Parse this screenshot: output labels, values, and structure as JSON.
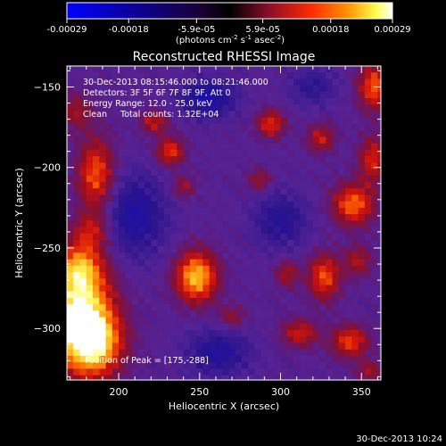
{
  "chart_data": {
    "type": "heatmap",
    "title": "Reconstructed RHESSI Image",
    "xlabel": "Heliocentric X (arcsec)",
    "ylabel": "Heliocentric Y (arcsec)",
    "xlim": [
      168,
      362
    ],
    "ylim": [
      -332,
      -137
    ],
    "x_ticks": [
      200,
      250,
      300,
      350
    ],
    "y_ticks": [
      -150,
      -200,
      -250,
      -300
    ],
    "colorbar": {
      "ticks": [
        "-0.00029",
        "-0.00018",
        "-5.9e-05",
        "5.9e-05",
        "0.00018",
        "0.00029"
      ],
      "tick_values": [
        -0.00029,
        -0.00018,
        -5.9e-05,
        5.9e-05,
        0.00018,
        0.00029
      ],
      "range": [
        -0.00029,
        0.00029
      ],
      "unit_prefix": "(photons cm",
      "unit_exp1": "-2",
      "unit_mid": " s",
      "unit_exp2": "-1",
      "unit_mid2": " asec",
      "unit_exp3": "-2",
      "unit_suffix": ")",
      "colors": [
        "#0000ff",
        "#000000",
        "#5a1a8a",
        "#d01010",
        "#ff8000",
        "#ffff60",
        "#ffffff"
      ]
    },
    "annotations": [
      "30-Dec-2013 08:15:46.000 to 08:21:46.000",
      "Detectors: 3F 5F 6F 7F 8F 9F, Att 0",
      "Energy Range: 12.0 - 25.0 keV",
      "Clean     Total counts: 1.32E+04"
    ],
    "peak_label": "Position of Peak = [175,-288]",
    "peak": [
      175,
      -288
    ],
    "background_level": -3e-05,
    "sources": [
      {
        "x": 176,
        "y": -292,
        "sx": 14,
        "sy": 22,
        "amp": 0.00032
      },
      {
        "x": 186,
        "y": -310,
        "sx": 12,
        "sy": 14,
        "amp": 0.0002
      },
      {
        "x": 176,
        "y": -262,
        "sx": 10,
        "sy": 10,
        "amp": 0.00016
      },
      {
        "x": 186,
        "y": -205,
        "sx": 8,
        "sy": 16,
        "amp": 0.00019
      },
      {
        "x": 183,
        "y": -240,
        "sx": 8,
        "sy": 8,
        "amp": 0.00012
      },
      {
        "x": 174,
        "y": -165,
        "sx": 7,
        "sy": 8,
        "amp": 0.0001
      },
      {
        "x": 248,
        "y": -268,
        "sx": 9,
        "sy": 11,
        "amp": 0.00026
      },
      {
        "x": 232,
        "y": -190,
        "sx": 6,
        "sy": 6,
        "amp": 0.00017
      },
      {
        "x": 222,
        "y": -172,
        "sx": 6,
        "sy": 5,
        "amp": 0.00013
      },
      {
        "x": 240,
        "y": -212,
        "sx": 5,
        "sy": 5,
        "amp": 0.0001
      },
      {
        "x": 294,
        "y": -173,
        "sx": 6,
        "sy": 6,
        "amp": 0.00016
      },
      {
        "x": 325,
        "y": -182,
        "sx": 6,
        "sy": 6,
        "amp": 0.00013
      },
      {
        "x": 287,
        "y": -208,
        "sx": 5,
        "sy": 5,
        "amp": 0.0001
      },
      {
        "x": 345,
        "y": -223,
        "sx": 9,
        "sy": 9,
        "amp": 0.0002
      },
      {
        "x": 358,
        "y": -150,
        "sx": 7,
        "sy": 10,
        "amp": 0.00019
      },
      {
        "x": 357,
        "y": -195,
        "sx": 6,
        "sy": 10,
        "amp": 0.00015
      },
      {
        "x": 327,
        "y": -268,
        "sx": 7,
        "sy": 10,
        "amp": 0.00018
      },
      {
        "x": 304,
        "y": -266,
        "sx": 5,
        "sy": 6,
        "amp": 0.00011
      },
      {
        "x": 312,
        "y": -303,
        "sx": 8,
        "sy": 6,
        "amp": 0.00014
      },
      {
        "x": 343,
        "y": -308,
        "sx": 8,
        "sy": 7,
        "amp": 0.00017
      },
      {
        "x": 348,
        "y": -258,
        "sx": 6,
        "sy": 7,
        "amp": 0.00011
      },
      {
        "x": 270,
        "y": -293,
        "sx": 6,
        "sy": 5,
        "amp": 9e-05
      },
      {
        "x": 355,
        "y": -327,
        "sx": 6,
        "sy": 5,
        "amp": 0.0001
      }
    ],
    "negative_regions": [
      {
        "x": 210,
        "y": -230,
        "sx": 14,
        "sy": 18,
        "amp": 0.00012
      },
      {
        "x": 255,
        "y": -157,
        "sx": 12,
        "sy": 8,
        "amp": 0.00014
      },
      {
        "x": 300,
        "y": -233,
        "sx": 12,
        "sy": 12,
        "amp": 0.0001
      },
      {
        "x": 262,
        "y": -315,
        "sx": 14,
        "sy": 10,
        "amp": 0.00011
      },
      {
        "x": 320,
        "y": -150,
        "sx": 10,
        "sy": 8,
        "amp": 8e-05
      }
    ],
    "pixel_size_arcsec": 4
  },
  "footer": {
    "timestamp": "30-Dec-2013 10:24"
  }
}
